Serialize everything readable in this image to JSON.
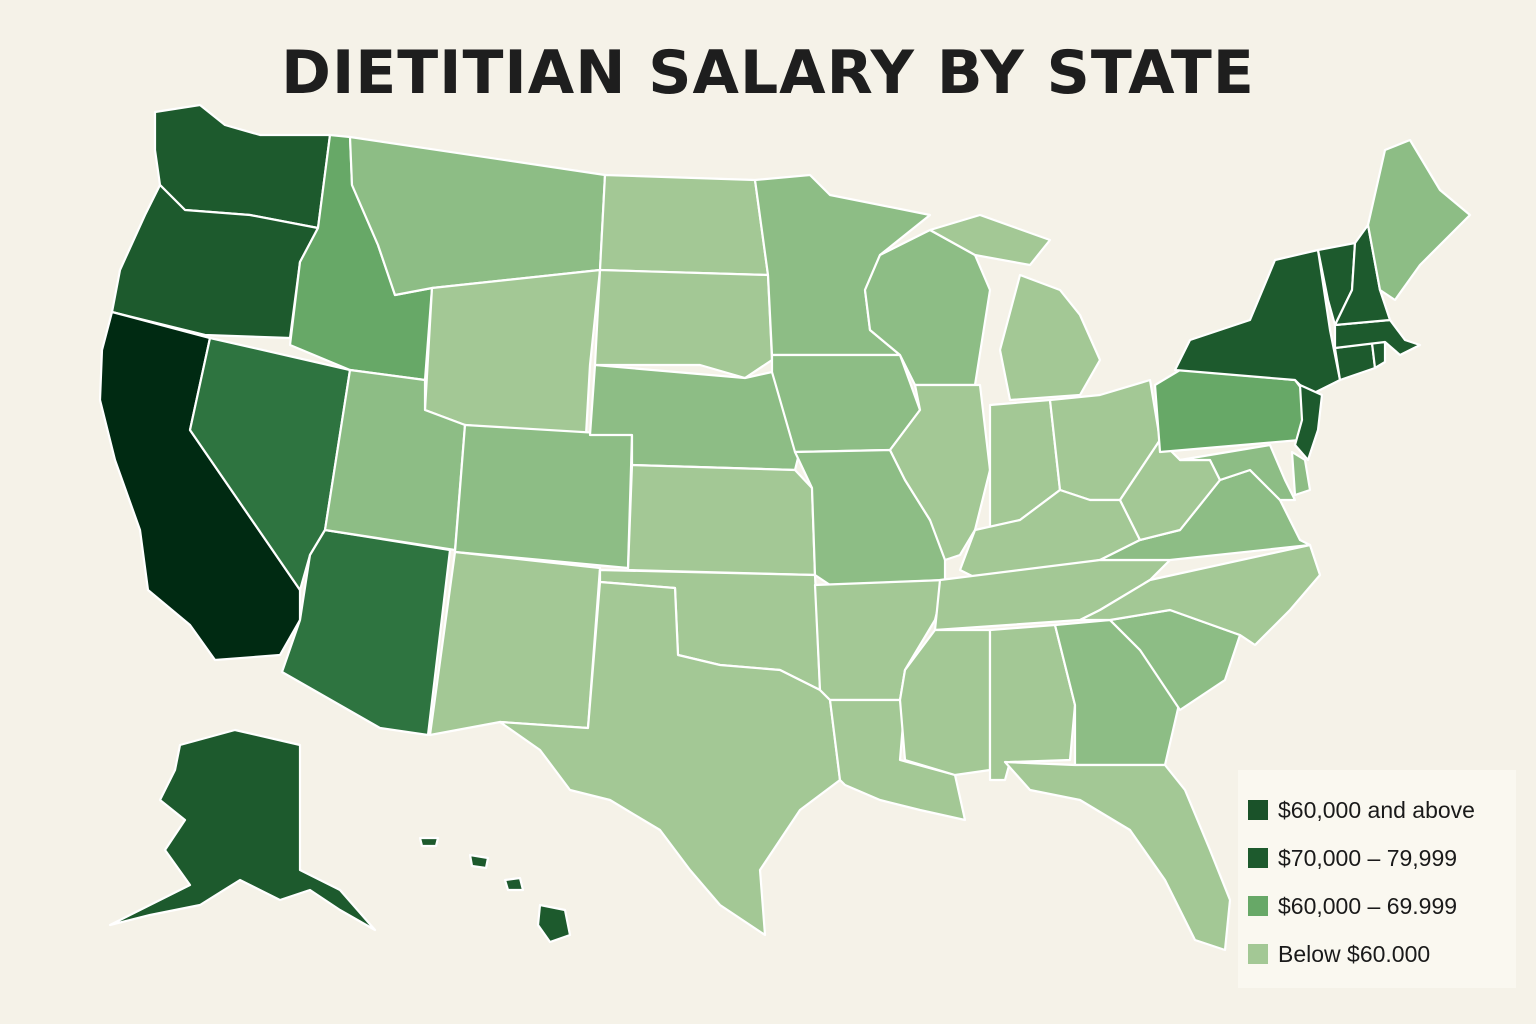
{
  "title": "DIETITIAN SALARY BY STATE",
  "colors": {
    "background": "#f5f2e8",
    "tier_top": "#002a12",
    "tier_80": "#1d5a2d",
    "tier_75": "#2e7440",
    "tier_60_69": "#67a867",
    "tier_mid": "#8dbd85",
    "tier_below_60": "#a3c895"
  },
  "legend": {
    "items": [
      {
        "label": "$60,000 and above",
        "color": "#1a5229"
      },
      {
        "label": "$70,000 – 79,999",
        "color": "#1d5a2d"
      },
      {
        "label": "$60,000 – 69.999",
        "color": "#67a867"
      },
      {
        "label": "Below $60.000",
        "color": "#a3c895"
      }
    ]
  },
  "states": [
    {
      "name": "Washington",
      "tier": "tier_80"
    },
    {
      "name": "Oregon",
      "tier": "tier_80"
    },
    {
      "name": "California",
      "tier": "tier_top"
    },
    {
      "name": "Nevada",
      "tier": "tier_75"
    },
    {
      "name": "Arizona",
      "tier": "tier_75"
    },
    {
      "name": "Idaho",
      "tier": "tier_60_69"
    },
    {
      "name": "Montana",
      "tier": "tier_mid"
    },
    {
      "name": "Wyoming",
      "tier": "tier_below_60"
    },
    {
      "name": "Utah",
      "tier": "tier_mid"
    },
    {
      "name": "Colorado",
      "tier": "tier_mid"
    },
    {
      "name": "New Mexico",
      "tier": "tier_below_60"
    },
    {
      "name": "North Dakota",
      "tier": "tier_below_60"
    },
    {
      "name": "South Dakota",
      "tier": "tier_below_60"
    },
    {
      "name": "Nebraska",
      "tier": "tier_mid"
    },
    {
      "name": "Kansas",
      "tier": "tier_below_60"
    },
    {
      "name": "Oklahoma",
      "tier": "tier_below_60"
    },
    {
      "name": "Texas",
      "tier": "tier_below_60"
    },
    {
      "name": "Minnesota",
      "tier": "tier_mid"
    },
    {
      "name": "Iowa",
      "tier": "tier_mid"
    },
    {
      "name": "Missouri",
      "tier": "tier_mid"
    },
    {
      "name": "Arkansas",
      "tier": "tier_below_60"
    },
    {
      "name": "Louisiana",
      "tier": "tier_below_60"
    },
    {
      "name": "Wisconsin",
      "tier": "tier_mid"
    },
    {
      "name": "Illinois",
      "tier": "tier_below_60"
    },
    {
      "name": "Michigan",
      "tier": "tier_below_60"
    },
    {
      "name": "Indiana",
      "tier": "tier_below_60"
    },
    {
      "name": "Ohio",
      "tier": "tier_below_60"
    },
    {
      "name": "Kentucky",
      "tier": "tier_below_60"
    },
    {
      "name": "Tennessee",
      "tier": "tier_below_60"
    },
    {
      "name": "Mississippi",
      "tier": "tier_below_60"
    },
    {
      "name": "Alabama",
      "tier": "tier_below_60"
    },
    {
      "name": "Georgia",
      "tier": "tier_mid"
    },
    {
      "name": "Florida",
      "tier": "tier_below_60"
    },
    {
      "name": "South Carolina",
      "tier": "tier_mid"
    },
    {
      "name": "North Carolina",
      "tier": "tier_below_60"
    },
    {
      "name": "Virginia",
      "tier": "tier_mid"
    },
    {
      "name": "West Virginia",
      "tier": "tier_below_60"
    },
    {
      "name": "Pennsylvania",
      "tier": "tier_60_69"
    },
    {
      "name": "New York",
      "tier": "tier_80"
    },
    {
      "name": "New Jersey",
      "tier": "tier_80"
    },
    {
      "name": "Maryland",
      "tier": "tier_mid"
    },
    {
      "name": "Delaware",
      "tier": "tier_mid"
    },
    {
      "name": "Connecticut",
      "tier": "tier_80"
    },
    {
      "name": "Rhode Island",
      "tier": "tier_80"
    },
    {
      "name": "Massachusetts",
      "tier": "tier_80"
    },
    {
      "name": "Vermont",
      "tier": "tier_80"
    },
    {
      "name": "New Hampshire",
      "tier": "tier_80"
    },
    {
      "name": "Maine",
      "tier": "tier_mid"
    },
    {
      "name": "Alaska",
      "tier": "tier_80"
    },
    {
      "name": "Hawaii",
      "tier": "tier_80"
    }
  ]
}
